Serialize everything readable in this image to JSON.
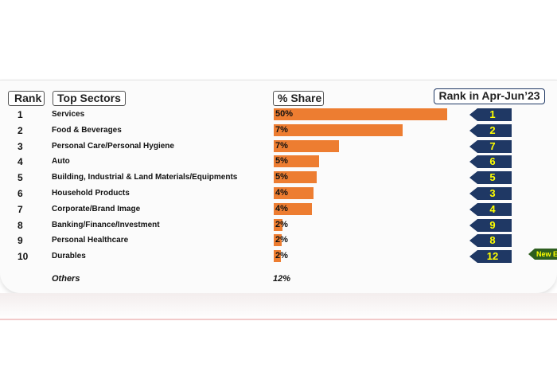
{
  "headers": {
    "rank": "Rank",
    "sectors": "Top Sectors",
    "share": "% Share",
    "previous_rank": "Rank in Apr-Jun’23"
  },
  "chart_data": {
    "type": "bar",
    "orientation": "horizontal",
    "categories": [
      "Services",
      "Food & Beverages",
      "Personal Care/Personal Hygiene",
      "Auto",
      "Building, Industrial & Land Materials/Equipments",
      "Household Products",
      "Corporate/Brand Image",
      "Banking/Finance/Investment",
      "Personal Healthcare",
      "Durables"
    ],
    "ranks": [
      1,
      2,
      3,
      4,
      5,
      6,
      7,
      8,
      9,
      10
    ],
    "values": [
      50,
      7,
      7,
      5,
      5,
      4,
      4,
      2,
      2,
      2
    ],
    "value_labels": [
      "50%",
      "7%",
      "7%",
      "5%",
      "5%",
      "4%",
      "4%",
      "2%",
      "2%",
      "2%"
    ],
    "previous_ranks": [
      1,
      2,
      7,
      6,
      5,
      3,
      4,
      9,
      8,
      12
    ],
    "bar_color": "#ed7d31"
  },
  "others": {
    "label": "Others",
    "value": "12%"
  },
  "new_entry_badge": "New E",
  "colors": {
    "bar": "#ed7d31",
    "chip": "#1f3864",
    "chip_text": "#ffff00",
    "new_badge": "#2e5e1f"
  }
}
